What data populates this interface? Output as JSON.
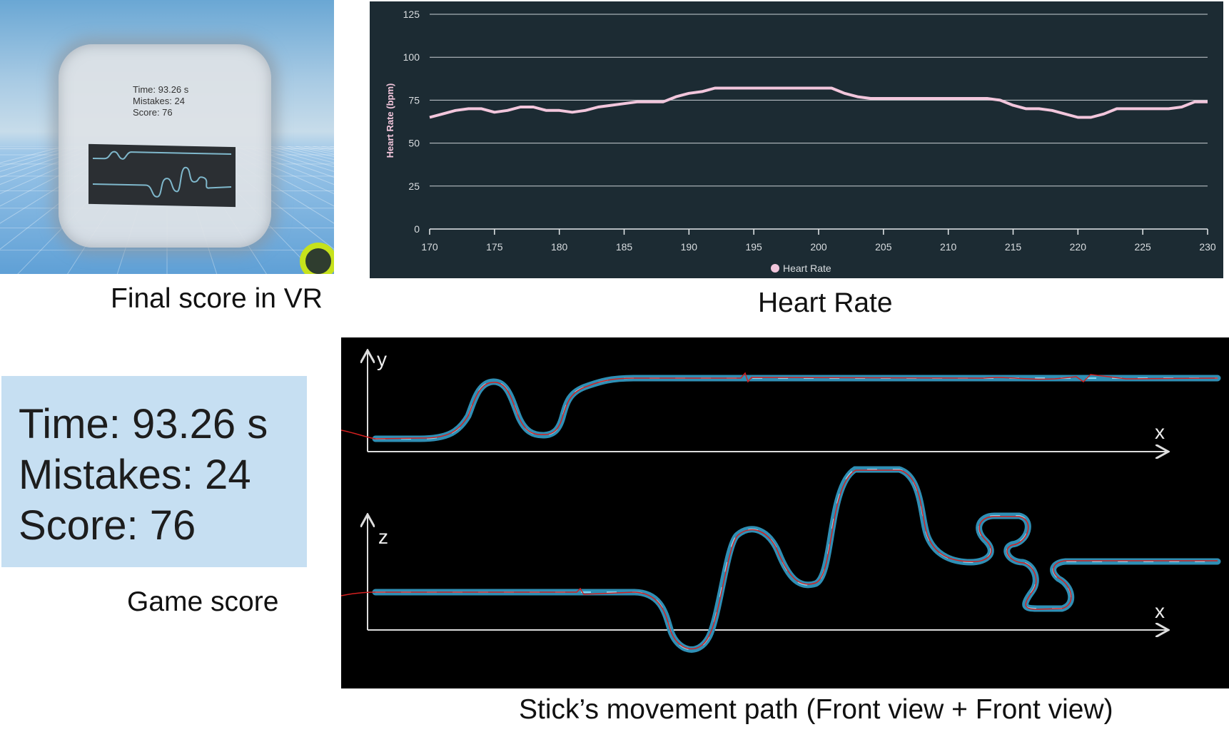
{
  "panels": {
    "vr": {
      "caption": "Final score in VR",
      "time_text": "Time: 93.26 s",
      "mistakes_text": "Mistakes: 24",
      "score_text": "Score: 76"
    },
    "heart_rate": {
      "caption": "Heart Rate"
    },
    "game_score": {
      "caption": "Game score",
      "time_text": "Time: 93.26 s",
      "mistakes_text": "Mistakes: 24",
      "score_text": "Score: 76"
    },
    "path": {
      "caption": "Stick’s movement path (Front view + Front view)",
      "top_y_label": "y",
      "top_x_label": "x",
      "bottom_z_label": "z",
      "bottom_x_label": "x"
    }
  },
  "colors": {
    "chart_bg": "#1c2b33",
    "heart_line": "#f2c6dc",
    "grid": "#cfd6da",
    "track": "#3aa6cf",
    "trace": "#e02020"
  },
  "chart_data": {
    "type": "line",
    "title": "",
    "xlabel": "",
    "ylabel": "Heart Rate (bpm)",
    "xlim": [
      170,
      230
    ],
    "ylim": [
      0,
      125
    ],
    "xticks": [
      170,
      175,
      180,
      185,
      190,
      195,
      200,
      205,
      210,
      215,
      220,
      225,
      230
    ],
    "yticks": [
      0,
      25,
      50,
      75,
      100,
      125
    ],
    "grid": true,
    "legend": "bottom-center",
    "series": [
      {
        "name": "Heart Rate",
        "x": [
          170,
          171,
          172,
          173,
          174,
          175,
          176,
          177,
          178,
          179,
          180,
          181,
          182,
          183,
          184,
          185,
          186,
          187,
          188,
          189,
          190,
          191,
          192,
          193,
          194,
          195,
          196,
          197,
          198,
          199,
          200,
          201,
          202,
          203,
          204,
          205,
          206,
          207,
          208,
          209,
          210,
          211,
          212,
          213,
          214,
          215,
          216,
          217,
          218,
          219,
          220,
          221,
          222,
          223,
          224,
          225,
          226,
          227,
          228,
          229,
          230
        ],
        "values": [
          65,
          67,
          69,
          70,
          70,
          68,
          69,
          71,
          71,
          69,
          69,
          68,
          69,
          71,
          72,
          73,
          74,
          74,
          74,
          77,
          79,
          80,
          82,
          82,
          82,
          82,
          82,
          82,
          82,
          82,
          82,
          82,
          79,
          77,
          76,
          76,
          76,
          76,
          76,
          76,
          76,
          76,
          76,
          76,
          75,
          72,
          70,
          70,
          69,
          67,
          65,
          65,
          67,
          70,
          70,
          70,
          70,
          70,
          71,
          74,
          74
        ]
      }
    ]
  }
}
